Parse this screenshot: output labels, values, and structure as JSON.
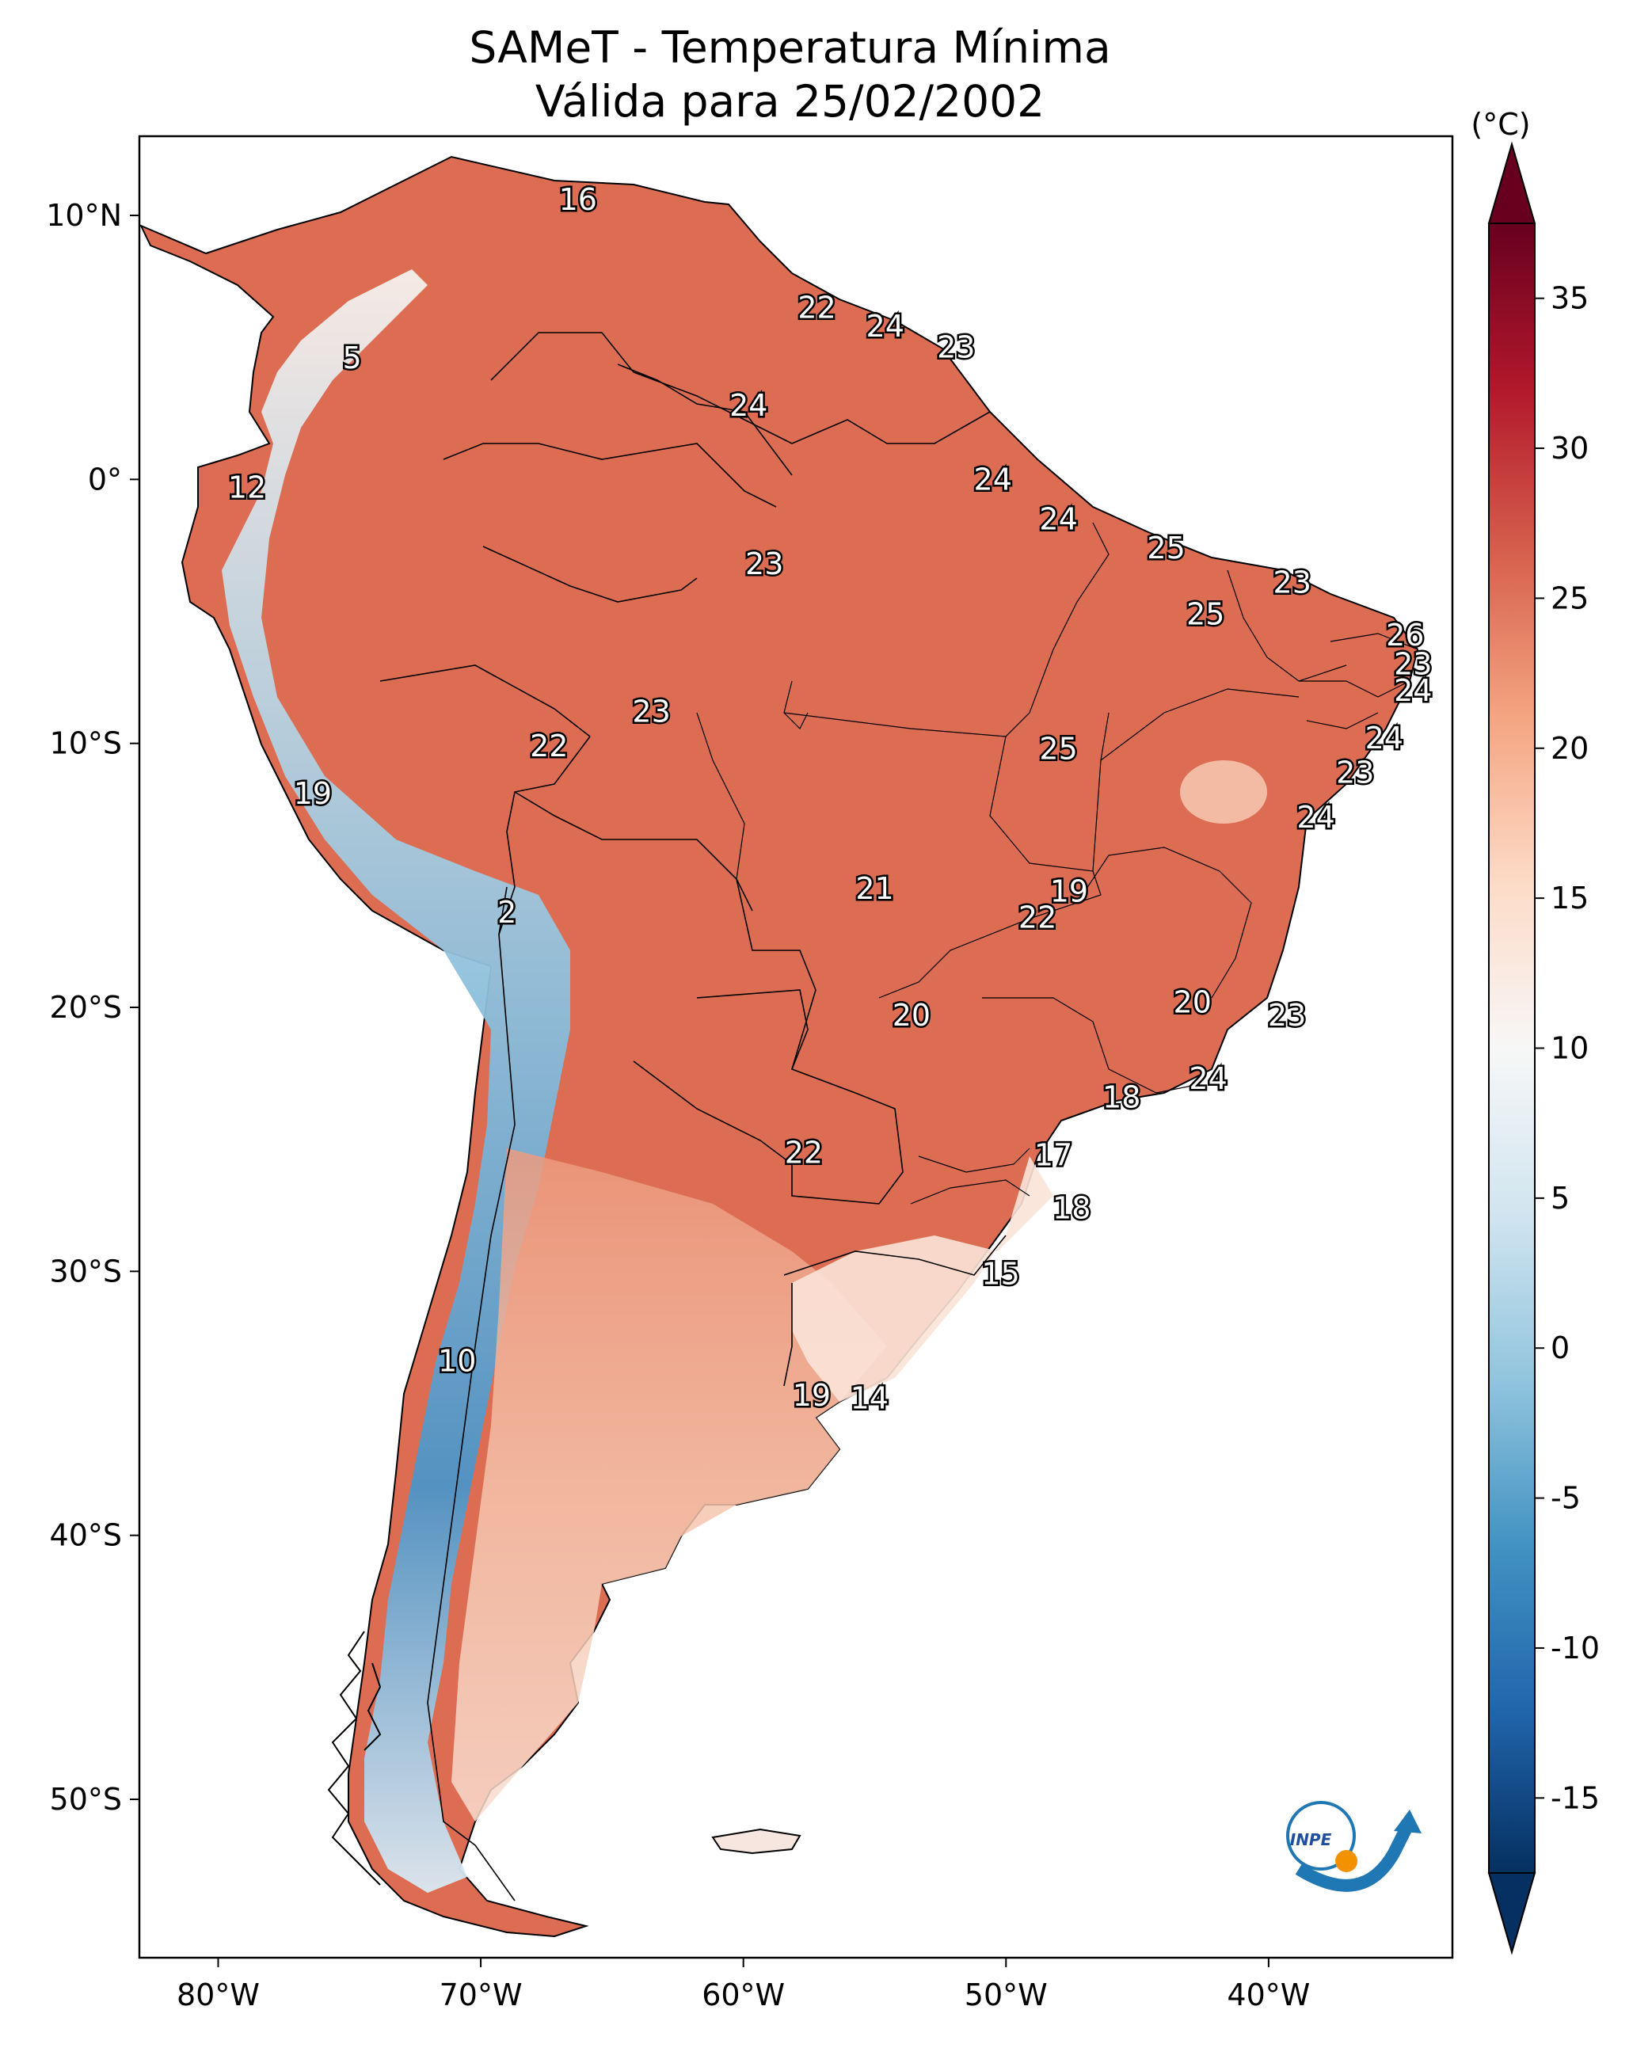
{
  "title": {
    "line1": "SAMeT - Temperatura Mínima",
    "line2": "Válida para 25/02/2002"
  },
  "map": {
    "region": "South America",
    "lon_range": [
      -83,
      -33
    ],
    "lat_range": [
      -56,
      13
    ],
    "lon_ticks": [
      {
        "lon": -80,
        "label": "80°W"
      },
      {
        "lon": -70,
        "label": "70°W"
      },
      {
        "lon": -60,
        "label": "60°W"
      },
      {
        "lon": -50,
        "label": "50°W"
      },
      {
        "lon": -40,
        "label": "40°W"
      }
    ],
    "lat_ticks": [
      {
        "lat": 10,
        "label": "10°N"
      },
      {
        "lat": 0,
        "label": "0°"
      },
      {
        "lat": -10,
        "label": "10°S"
      },
      {
        "lat": -20,
        "label": "20°S"
      },
      {
        "lat": -30,
        "label": "30°S"
      },
      {
        "lat": -40,
        "label": "40°S"
      },
      {
        "lat": -50,
        "label": "50°S"
      }
    ]
  },
  "labels": [
    {
      "v": "16",
      "lon": -66.3,
      "lat": 10.6
    },
    {
      "v": "22",
      "lon": -57.2,
      "lat": 6.5
    },
    {
      "v": "24",
      "lon": -54.6,
      "lat": 5.8
    },
    {
      "v": "23",
      "lon": -51.9,
      "lat": 5.0
    },
    {
      "v": "5",
      "lon": -74.9,
      "lat": 4.6
    },
    {
      "v": "24",
      "lon": -59.8,
      "lat": 2.8
    },
    {
      "v": "12",
      "lon": -78.9,
      "lat": -0.3
    },
    {
      "v": "24",
      "lon": -50.5,
      "lat": 0.0
    },
    {
      "v": "24",
      "lon": -48.0,
      "lat": -1.5
    },
    {
      "v": "25",
      "lon": -43.9,
      "lat": -2.6
    },
    {
      "v": "23",
      "lon": -59.2,
      "lat": -3.2
    },
    {
      "v": "23",
      "lon": -39.1,
      "lat": -3.9
    },
    {
      "v": "25",
      "lon": -42.4,
      "lat": -5.1
    },
    {
      "v": "26",
      "lon": -34.8,
      "lat": -5.9
    },
    {
      "v": "23",
      "lon": -34.5,
      "lat": -7.0
    },
    {
      "v": "24",
      "lon": -34.5,
      "lat": -8.0
    },
    {
      "v": "23",
      "lon": -63.5,
      "lat": -8.8
    },
    {
      "v": "24",
      "lon": -35.6,
      "lat": -9.8
    },
    {
      "v": "22",
      "lon": -67.4,
      "lat": -10.1
    },
    {
      "v": "25",
      "lon": -48.0,
      "lat": -10.2
    },
    {
      "v": "23",
      "lon": -36.7,
      "lat": -11.1
    },
    {
      "v": "19",
      "lon": -76.4,
      "lat": -11.9
    },
    {
      "v": "24",
      "lon": -38.2,
      "lat": -12.8
    },
    {
      "v": "21",
      "lon": -55.0,
      "lat": -15.5
    },
    {
      "v": "19",
      "lon": -47.6,
      "lat": -15.6
    },
    {
      "v": "22",
      "lon": -48.8,
      "lat": -16.6
    },
    {
      "v": "2",
      "lon": -69.0,
      "lat": -16.4
    },
    {
      "v": "20",
      "lon": -42.9,
      "lat": -19.8
    },
    {
      "v": "20",
      "lon": -53.6,
      "lat": -20.3
    },
    {
      "v": "23",
      "lon": -39.3,
      "lat": -20.3
    },
    {
      "v": "24",
      "lon": -42.3,
      "lat": -22.7
    },
    {
      "v": "18",
      "lon": -45.6,
      "lat": -23.4
    },
    {
      "v": "22",
      "lon": -57.7,
      "lat": -25.5
    },
    {
      "v": "17",
      "lon": -48.2,
      "lat": -25.6
    },
    {
      "v": "18",
      "lon": -47.5,
      "lat": -27.6
    },
    {
      "v": "15",
      "lon": -50.2,
      "lat": -30.1
    },
    {
      "v": "10",
      "lon": -70.9,
      "lat": -33.4
    },
    {
      "v": "19",
      "lon": -57.4,
      "lat": -34.7
    },
    {
      "v": "14",
      "lon": -55.2,
      "lat": -34.8
    }
  ],
  "colorbar": {
    "unit": "(°C)",
    "ticks": [
      "35",
      "30",
      "25",
      "20",
      "15",
      "10",
      "5",
      "0",
      "-5",
      "-10",
      "-15"
    ],
    "colors": [
      "#67001f",
      "#b2182b",
      "#d6604d",
      "#f4a582",
      "#fddbc7",
      "#f7f7f7",
      "#d1e5f0",
      "#92c5de",
      "#4393c3",
      "#2166ac",
      "#053061"
    ]
  },
  "logo": {
    "text": "INPE"
  }
}
